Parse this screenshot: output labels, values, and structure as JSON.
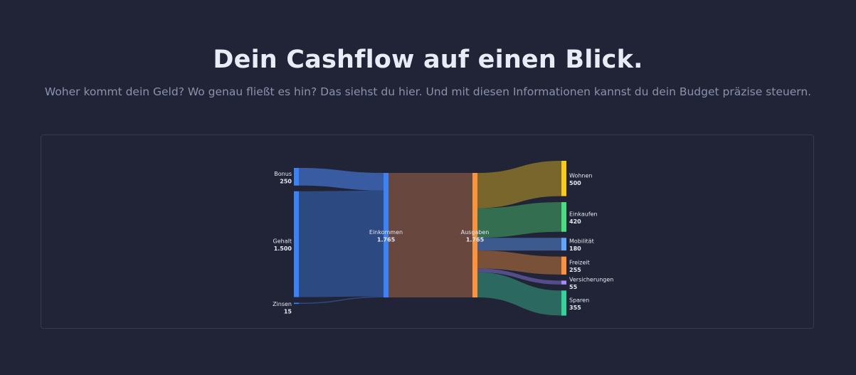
{
  "header": {
    "title": "Dein Cashflow auf einen Blick.",
    "subtitle": "Woher kommt dein Geld? Wo genau fließt es hin? Das siehst du hier. Und mit diesen Informationen kannst du dein Budget präzise steuern."
  },
  "chart_data": {
    "type": "sankey",
    "nodes": [
      {
        "id": "bonus",
        "label": "Bonus",
        "value_label": "250",
        "value": 250,
        "color": "#3b82f6"
      },
      {
        "id": "gehalt",
        "label": "Gehalt",
        "value_label": "1.500",
        "value": 1500,
        "color": "#3b82f6"
      },
      {
        "id": "zinsen",
        "label": "Zinsen",
        "value_label": "15",
        "value": 15,
        "color": "#3b82f6"
      },
      {
        "id": "einkommen",
        "label": "Einkommen",
        "value_label": "1.765",
        "value": 1765,
        "color": "#3b82f6"
      },
      {
        "id": "ausgaben",
        "label": "Ausgaben",
        "value_label": "1.765",
        "value": 1765,
        "color": "#fb923c"
      },
      {
        "id": "wohnen",
        "label": "Wohnen",
        "value_label": "500",
        "value": 500,
        "color": "#facc15"
      },
      {
        "id": "einkaufen",
        "label": "Einkaufen",
        "value_label": "420",
        "value": 420,
        "color": "#4ade80"
      },
      {
        "id": "mobilitaet",
        "label": "Mobilität",
        "value_label": "180",
        "value": 180,
        "color": "#60a5fa"
      },
      {
        "id": "freizeit",
        "label": "Freizeit",
        "value_label": "255",
        "value": 255,
        "color": "#fb923c"
      },
      {
        "id": "versicherungen",
        "label": "Versicherungen",
        "value_label": "55",
        "value": 55,
        "color": "#a78bfa"
      },
      {
        "id": "sparen",
        "label": "Sparen",
        "value_label": "355",
        "value": 355,
        "color": "#34d399"
      }
    ],
    "links": [
      {
        "source": "bonus",
        "target": "einkommen",
        "value": 250,
        "color": "#3b5fa8"
      },
      {
        "source": "gehalt",
        "target": "einkommen",
        "value": 1500,
        "color": "#2e4c86"
      },
      {
        "source": "zinsen",
        "target": "einkommen",
        "value": 15,
        "color": "#2e4c86"
      },
      {
        "source": "einkommen",
        "target": "ausgaben",
        "value": 1765,
        "color": "#6b4a3f"
      },
      {
        "source": "ausgaben",
        "target": "wohnen",
        "value": 500,
        "color": "#7d6a2d"
      },
      {
        "source": "ausgaben",
        "target": "einkaufen",
        "value": 420,
        "color": "#367353"
      },
      {
        "source": "ausgaben",
        "target": "mobilitaet",
        "value": 180,
        "color": "#3e5e92"
      },
      {
        "source": "ausgaben",
        "target": "freizeit",
        "value": 255,
        "color": "#7e543a"
      },
      {
        "source": "ausgaben",
        "target": "versicherungen",
        "value": 55,
        "color": "#56508e"
      },
      {
        "source": "ausgaben",
        "target": "sparen",
        "value": 355,
        "color": "#2c6d62"
      }
    ]
  }
}
